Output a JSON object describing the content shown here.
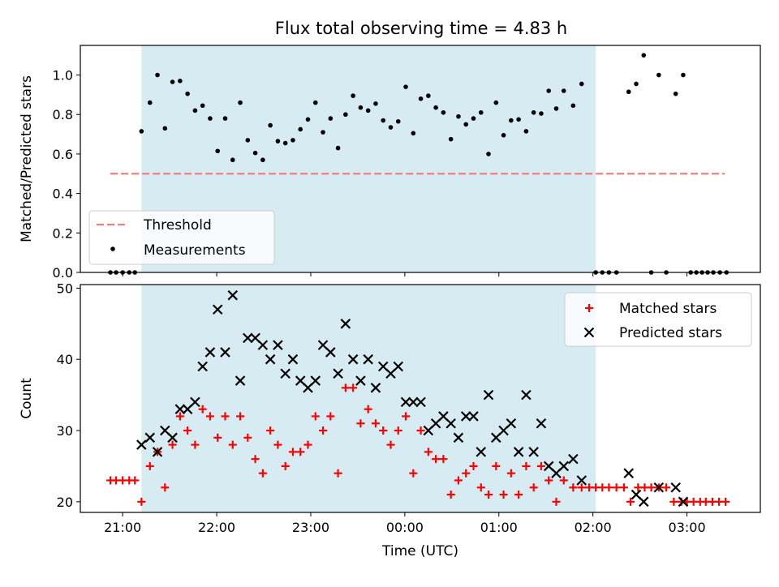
{
  "title": "Flux total observing time = 4.83 h",
  "chart_data": [
    {
      "type": "scatter",
      "ylabel": "Matched/Predicted stars",
      "ylim": [
        0,
        1.15
      ],
      "yticks": [
        "0.0",
        "0.2",
        "0.4",
        "0.6",
        "0.8",
        "1.0"
      ],
      "xlim": [
        -0.45,
        6.78
      ],
      "x_unit": "hours after 21:00 UTC",
      "observing_window": [
        0.2,
        5.03
      ],
      "threshold": {
        "name": "Threshold",
        "value": 0.5,
        "x_range": [
          -0.13,
          6.4
        ],
        "color": "#f08080"
      },
      "series": [
        {
          "name": "Measurements",
          "color": "#000000",
          "points": [
            [
              -0.13,
              0
            ],
            [
              -0.07,
              0
            ],
            [
              0.0,
              0
            ],
            [
              0.07,
              0
            ],
            [
              0.13,
              0
            ],
            [
              0.2,
              0.715
            ],
            [
              0.29,
              0.86
            ],
            [
              0.37,
              1.0
            ],
            [
              0.45,
              0.73
            ],
            [
              0.53,
              0.965
            ],
            [
              0.61,
              0.97
            ],
            [
              0.69,
              0.905
            ],
            [
              0.77,
              0.82
            ],
            [
              0.85,
              0.845
            ],
            [
              0.93,
              0.78
            ],
            [
              1.01,
              0.615
            ],
            [
              1.09,
              0.78
            ],
            [
              1.17,
              0.57
            ],
            [
              1.25,
              0.86
            ],
            [
              1.33,
              0.67
            ],
            [
              1.41,
              0.605
            ],
            [
              1.49,
              0.57
            ],
            [
              1.57,
              0.745
            ],
            [
              1.65,
              0.665
            ],
            [
              1.73,
              0.655
            ],
            [
              1.81,
              0.67
            ],
            [
              1.89,
              0.725
            ],
            [
              1.97,
              0.775
            ],
            [
              2.05,
              0.86
            ],
            [
              2.13,
              0.71
            ],
            [
              2.21,
              0.78
            ],
            [
              2.29,
              0.63
            ],
            [
              2.37,
              0.8
            ],
            [
              2.45,
              0.895
            ],
            [
              2.53,
              0.835
            ],
            [
              2.61,
              0.82
            ],
            [
              2.69,
              0.855
            ],
            [
              2.77,
              0.77
            ],
            [
              2.85,
              0.735
            ],
            [
              2.93,
              0.765
            ],
            [
              3.01,
              0.94
            ],
            [
              3.09,
              0.705
            ],
            [
              3.17,
              0.88
            ],
            [
              3.25,
              0.895
            ],
            [
              3.33,
              0.835
            ],
            [
              3.41,
              0.81
            ],
            [
              3.49,
              0.675
            ],
            [
              3.57,
              0.79
            ],
            [
              3.65,
              0.75
            ],
            [
              3.73,
              0.78
            ],
            [
              3.81,
              0.81
            ],
            [
              3.89,
              0.6
            ],
            [
              3.97,
              0.86
            ],
            [
              4.05,
              0.695
            ],
            [
              4.13,
              0.77
            ],
            [
              4.21,
              0.775
            ],
            [
              4.29,
              0.715
            ],
            [
              4.37,
              0.81
            ],
            [
              4.45,
              0.805
            ],
            [
              4.53,
              0.92
            ],
            [
              4.61,
              0.83
            ],
            [
              4.69,
              0.92
            ],
            [
              4.79,
              0.845
            ],
            [
              4.88,
              0.955
            ],
            [
              5.03,
              0
            ],
            [
              5.1,
              0
            ],
            [
              5.17,
              0
            ],
            [
              5.25,
              0
            ],
            [
              5.38,
              0.915
            ],
            [
              5.46,
              0.955
            ],
            [
              5.54,
              1.1
            ],
            [
              5.62,
              0
            ],
            [
              5.7,
              1.0
            ],
            [
              5.78,
              0
            ],
            [
              5.88,
              0.905
            ],
            [
              5.96,
              1.0
            ],
            [
              6.04,
              0
            ],
            [
              6.1,
              0
            ],
            [
              6.16,
              0
            ],
            [
              6.22,
              0
            ],
            [
              6.28,
              0
            ],
            [
              6.35,
              0
            ],
            [
              6.42,
              0
            ]
          ]
        }
      ],
      "legend_position": "lower-left"
    },
    {
      "type": "scatter",
      "xlabel": "Time (UTC)",
      "ylabel": "Count",
      "ylim": [
        18.5,
        50.5
      ],
      "yticks": [
        "20",
        "30",
        "40",
        "50"
      ],
      "xlim": [
        -0.45,
        6.78
      ],
      "x_unit": "hours after 21:00 UTC",
      "xticks": [
        "21:00",
        "22:00",
        "23:00",
        "00:00",
        "01:00",
        "02:00",
        "03:00"
      ],
      "observing_window": [
        0.2,
        5.03
      ],
      "series": [
        {
          "name": "Matched stars",
          "marker": "plus",
          "color": "#ff0000",
          "points": [
            [
              -0.13,
              23
            ],
            [
              -0.07,
              23
            ],
            [
              0.0,
              23
            ],
            [
              0.07,
              23
            ],
            [
              0.13,
              23
            ],
            [
              0.2,
              20
            ],
            [
              0.29,
              25
            ],
            [
              0.37,
              27
            ],
            [
              0.45,
              22
            ],
            [
              0.53,
              28
            ],
            [
              0.61,
              32
            ],
            [
              0.69,
              30
            ],
            [
              0.77,
              28
            ],
            [
              0.85,
              33
            ],
            [
              0.93,
              32
            ],
            [
              1.01,
              29
            ],
            [
              1.09,
              32
            ],
            [
              1.17,
              28
            ],
            [
              1.25,
              32
            ],
            [
              1.33,
              29
            ],
            [
              1.41,
              26
            ],
            [
              1.49,
              24
            ],
            [
              1.57,
              30
            ],
            [
              1.65,
              28
            ],
            [
              1.73,
              25
            ],
            [
              1.81,
              27
            ],
            [
              1.89,
              27
            ],
            [
              1.97,
              28
            ],
            [
              2.05,
              32
            ],
            [
              2.13,
              30
            ],
            [
              2.21,
              32
            ],
            [
              2.29,
              24
            ],
            [
              2.37,
              36
            ],
            [
              2.45,
              36
            ],
            [
              2.53,
              31
            ],
            [
              2.61,
              33
            ],
            [
              2.69,
              31
            ],
            [
              2.77,
              30
            ],
            [
              2.85,
              28
            ],
            [
              2.93,
              30
            ],
            [
              3.01,
              32
            ],
            [
              3.09,
              24
            ],
            [
              3.17,
              30
            ],
            [
              3.25,
              27
            ],
            [
              3.33,
              26
            ],
            [
              3.41,
              26
            ],
            [
              3.49,
              21
            ],
            [
              3.57,
              23
            ],
            [
              3.65,
              24
            ],
            [
              3.73,
              25
            ],
            [
              3.81,
              22
            ],
            [
              3.89,
              21
            ],
            [
              3.97,
              25
            ],
            [
              4.05,
              21
            ],
            [
              4.13,
              24
            ],
            [
              4.21,
              21
            ],
            [
              4.29,
              25
            ],
            [
              4.37,
              22
            ],
            [
              4.45,
              25
            ],
            [
              4.53,
              23
            ],
            [
              4.61,
              20
            ],
            [
              4.69,
              23
            ],
            [
              4.79,
              22
            ],
            [
              4.88,
              22
            ],
            [
              4.96,
              22
            ],
            [
              5.03,
              22
            ],
            [
              5.1,
              22
            ],
            [
              5.17,
              22
            ],
            [
              5.25,
              22
            ],
            [
              5.33,
              22
            ],
            [
              5.4,
              20
            ],
            [
              5.48,
              22
            ],
            [
              5.55,
              22
            ],
            [
              5.62,
              22
            ],
            [
              5.7,
              22
            ],
            [
              5.78,
              22
            ],
            [
              5.86,
              20
            ],
            [
              5.94,
              20
            ],
            [
              6.0,
              20
            ],
            [
              6.07,
              20
            ],
            [
              6.14,
              20
            ],
            [
              6.2,
              20
            ],
            [
              6.27,
              20
            ],
            [
              6.34,
              20
            ],
            [
              6.41,
              20
            ]
          ]
        },
        {
          "name": "Predicted stars",
          "marker": "x",
          "color": "#000000",
          "points": [
            [
              0.2,
              28
            ],
            [
              0.29,
              29
            ],
            [
              0.37,
              27
            ],
            [
              0.45,
              30
            ],
            [
              0.53,
              29
            ],
            [
              0.61,
              33
            ],
            [
              0.69,
              33
            ],
            [
              0.77,
              34
            ],
            [
              0.85,
              39
            ],
            [
              0.93,
              41
            ],
            [
              1.01,
              47
            ],
            [
              1.09,
              41
            ],
            [
              1.17,
              49
            ],
            [
              1.25,
              37
            ],
            [
              1.33,
              43
            ],
            [
              1.41,
              43
            ],
            [
              1.49,
              42
            ],
            [
              1.57,
              40
            ],
            [
              1.65,
              42
            ],
            [
              1.73,
              38
            ],
            [
              1.81,
              40
            ],
            [
              1.89,
              37
            ],
            [
              1.97,
              36
            ],
            [
              2.05,
              37
            ],
            [
              2.13,
              42
            ],
            [
              2.21,
              41
            ],
            [
              2.29,
              38
            ],
            [
              2.37,
              45
            ],
            [
              2.45,
              40
            ],
            [
              2.53,
              37
            ],
            [
              2.61,
              40
            ],
            [
              2.69,
              36
            ],
            [
              2.77,
              39
            ],
            [
              2.85,
              38
            ],
            [
              2.93,
              39
            ],
            [
              3.01,
              34
            ],
            [
              3.09,
              34
            ],
            [
              3.17,
              34
            ],
            [
              3.25,
              30
            ],
            [
              3.33,
              31
            ],
            [
              3.41,
              32
            ],
            [
              3.49,
              31
            ],
            [
              3.57,
              29
            ],
            [
              3.65,
              32
            ],
            [
              3.73,
              32
            ],
            [
              3.81,
              27
            ],
            [
              3.89,
              35
            ],
            [
              3.97,
              29
            ],
            [
              4.05,
              30
            ],
            [
              4.13,
              31
            ],
            [
              4.21,
              27
            ],
            [
              4.29,
              35
            ],
            [
              4.37,
              27
            ],
            [
              4.45,
              31
            ],
            [
              4.53,
              25
            ],
            [
              4.61,
              24
            ],
            [
              4.69,
              25
            ],
            [
              4.79,
              26
            ],
            [
              4.88,
              23
            ],
            [
              5.38,
              24
            ],
            [
              5.46,
              21
            ],
            [
              5.54,
              20
            ],
            [
              5.7,
              22
            ],
            [
              5.88,
              22
            ],
            [
              5.96,
              20
            ]
          ]
        }
      ],
      "legend_position": "upper-right"
    }
  ]
}
